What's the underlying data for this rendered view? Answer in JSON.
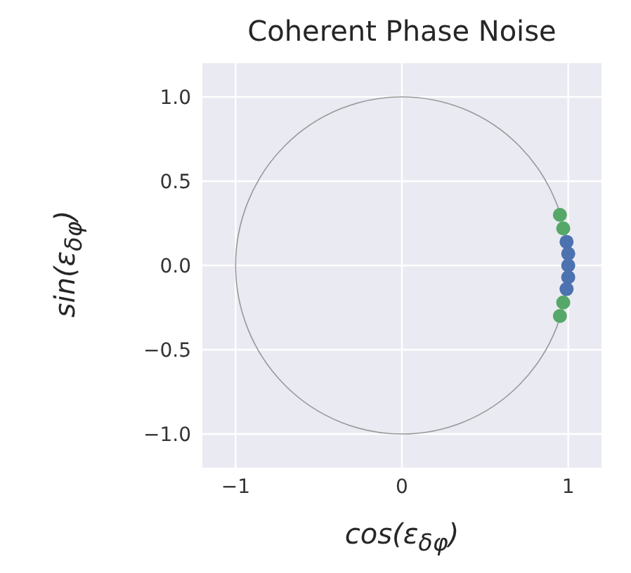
{
  "chart_data": {
    "type": "scatter",
    "title": "Coherent Phase Noise",
    "xlabel": "cos(ε$_{δφ}$)",
    "ylabel": "sin(ε$_{δφ}$)",
    "xlim": [
      -1.2,
      1.2
    ],
    "ylim": [
      -1.2,
      1.2
    ],
    "xticks": [
      -1,
      0,
      1
    ],
    "yticks": [
      {
        "value": -1,
        "label": "−1.0"
      },
      {
        "value": -0.5,
        "label": "−0.5"
      },
      {
        "value": 0,
        "label": "0.0"
      },
      {
        "value": 0.5,
        "label": "0.5"
      },
      {
        "value": 1,
        "label": "1.0"
      }
    ],
    "grid": true,
    "marker": "circle",
    "series": [
      {
        "color": "#55a868",
        "x": [
          0.95,
          0.97,
          0.97,
          0.95
        ],
        "values": [
          0.3,
          0.22,
          -0.22,
          -0.3
        ]
      },
      {
        "color": "#4c72b0",
        "x": [
          0.99,
          1,
          1,
          1,
          0.99
        ],
        "values": [
          0.14,
          0.07,
          0,
          -0.07,
          -0.14
        ]
      }
    ]
  }
}
